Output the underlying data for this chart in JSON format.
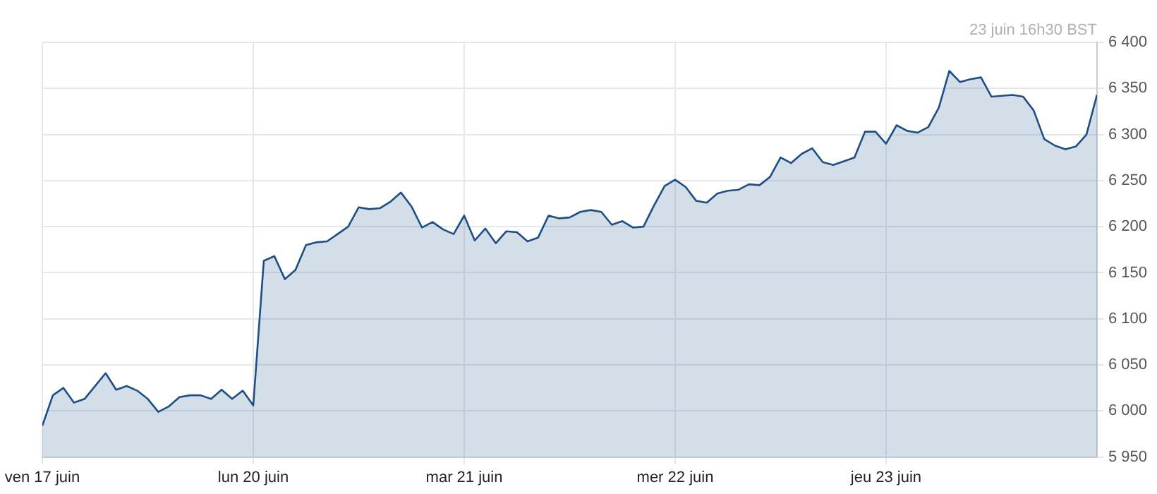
{
  "chart_data": {
    "type": "area",
    "annotations": [
      "23 juin 16h30 BST"
    ],
    "categories": [
      "ven 17 juin",
      null,
      null,
      null,
      null,
      null,
      null,
      null,
      null,
      null,
      null,
      null,
      null,
      null,
      null,
      null,
      null,
      null,
      null,
      null,
      "lun 20 juin",
      null,
      null,
      null,
      null,
      null,
      null,
      null,
      null,
      null,
      null,
      null,
      null,
      null,
      null,
      null,
      null,
      null,
      null,
      null,
      "mar 21 juin",
      null,
      null,
      null,
      null,
      null,
      null,
      null,
      null,
      null,
      null,
      null,
      null,
      null,
      null,
      null,
      null,
      null,
      null,
      null,
      "mer 22 juin",
      null,
      null,
      null,
      null,
      null,
      null,
      null,
      null,
      null,
      null,
      null,
      null,
      null,
      null,
      null,
      null,
      null,
      null,
      null,
      "jeu 23 juin",
      null,
      null,
      null,
      null,
      null,
      null,
      null,
      null,
      null,
      null,
      null,
      null,
      null,
      null,
      null,
      null,
      null,
      null,
      null,
      null
    ],
    "ylim": [
      5950,
      6400
    ],
    "yticks": [
      {
        "value": 5950,
        "label": "5 950"
      },
      {
        "value": 6000,
        "label": "6 000"
      },
      {
        "value": 6050,
        "label": "6 050"
      },
      {
        "value": 6100,
        "label": "6 100"
      },
      {
        "value": 6150,
        "label": "6 150"
      },
      {
        "value": 6200,
        "label": "6 200"
      },
      {
        "value": 6250,
        "label": "6 250"
      },
      {
        "value": 6300,
        "label": "6 300"
      },
      {
        "value": 6350,
        "label": "6 350"
      },
      {
        "value": 6400,
        "label": "6 400"
      }
    ],
    "grid": true,
    "legend": false,
    "marker": "none",
    "line_style": "solid",
    "series": [
      {
        "color": "#1d4f86",
        "values": [
          5984,
          6017,
          6025,
          6009,
          6013,
          6027,
          6041,
          6023,
          6027,
          6022,
          6013,
          5999,
          6005,
          6015,
          6017,
          6017,
          6013,
          6023,
          6013,
          6022,
          6006,
          6163,
          6168,
          6143,
          6153,
          6180,
          6183,
          6184,
          6192,
          6200,
          6221,
          6219,
          6220,
          6227,
          6237,
          6222,
          6199,
          6205,
          6197,
          6192,
          6212,
          6185,
          6198,
          6182,
          6195,
          6194,
          6184,
          6188,
          6212,
          6209,
          6210,
          6216,
          6218,
          6216,
          6202,
          6206,
          6199,
          6200,
          6223,
          6244,
          6251,
          6243,
          6228,
          6226,
          6236,
          6239,
          6240,
          6246,
          6245,
          6254,
          6275,
          6269,
          6279,
          6285,
          6270,
          6267,
          6271,
          6275,
          6303,
          6303,
          6290,
          6310,
          6304,
          6302,
          6308,
          6329,
          6369,
          6357,
          6360,
          6362,
          6341,
          6342,
          6343,
          6341,
          6326,
          6295,
          6288,
          6284,
          6287,
          6300,
          6343
        ]
      }
    ]
  }
}
